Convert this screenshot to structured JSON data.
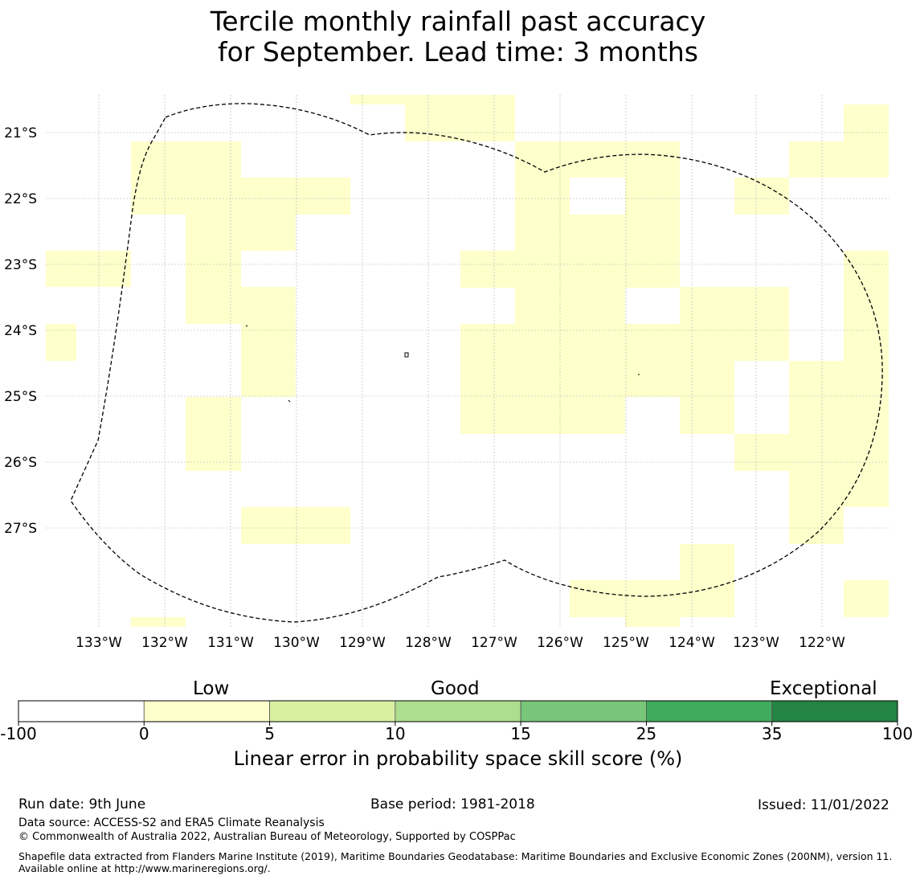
{
  "title": {
    "line1": "Tercile monthly rainfall past accuracy",
    "line2": "for September. Lead time: 3 months"
  },
  "map": {
    "lat_labels": [
      "21°S",
      "22°S",
      "23°S",
      "24°S",
      "25°S",
      "26°S",
      "27°S"
    ],
    "lon_labels": [
      "133°W",
      "132°W",
      "131°W",
      "130°W",
      "129°W",
      "128°W",
      "127°W",
      "126°W",
      "125°W",
      "124°W",
      "123°W",
      "122°W"
    ],
    "low_skill_color": "#ffffcc",
    "gridline_color": "#b0b0b0",
    "boundary_style": "dashed black line (EEZ boundary)"
  },
  "colorbar": {
    "category_words": [
      "Low",
      "Good",
      "Exceptional"
    ],
    "tick_labels": [
      "-100",
      "0",
      "5",
      "10",
      "15",
      "25",
      "35",
      "100"
    ],
    "colors": [
      "#ffffff",
      "#ffffcc",
      "#d9f0a3",
      "#addd8e",
      "#78c679",
      "#41ab5d",
      "#238443"
    ],
    "label": "Linear error in probability space skill score (%)"
  },
  "footer": {
    "run_date": "Run date: 9th June",
    "base_period": "Base period: 1981-2018",
    "issued": "Issued: 11/01/2022",
    "data_source": "Data source: ACCESS-S2 and ERA5 Climate Reanalysis",
    "copyright": "© Commonwealth of Australia 2022, Australian Bureau of Meteorology, Supported by COSPPac",
    "shapefile": "Shapefile data extracted from Flanders Marine Institute (2019), Maritime Boundaries Geodatabase: Maritime Boundaries and Exclusive Economic Zones (200NM), version 11. Available online at http://www.marineregions.org/."
  }
}
